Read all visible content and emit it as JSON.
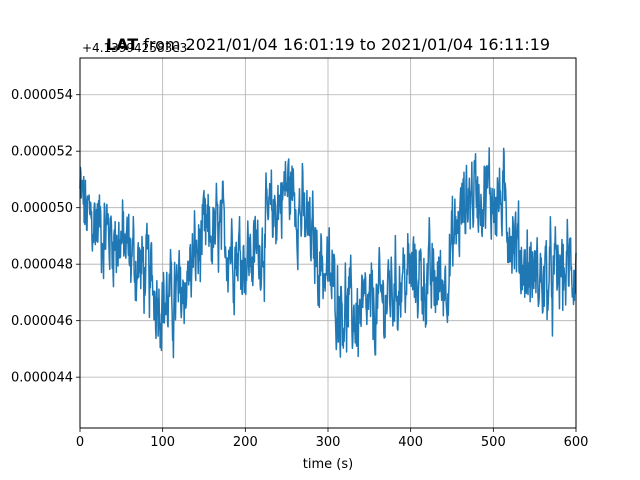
{
  "chart_data": {
    "type": "line",
    "title_variable": "LAT",
    "title_rest": " from 2021/01/04 16:01:19 to 2021/01/04 16:11:19",
    "xlabel": "time (s)",
    "ylabel": "",
    "y_offset_label": "+4.139942583e3",
    "xlim": [
      0,
      600
    ],
    "ylim": [
      4.22e-05,
      5.53e-05
    ],
    "x_ticks": [
      0,
      100,
      200,
      300,
      400,
      500,
      600
    ],
    "x_tick_labels": [
      "0",
      "100",
      "200",
      "300",
      "400",
      "500",
      "600"
    ],
    "y_ticks": [
      4.4e-05,
      4.6e-05,
      4.8e-05,
      5e-05,
      5.2e-05,
      5.4e-05
    ],
    "y_tick_labels": [
      "0.000044",
      "0.000046",
      "0.000048",
      "0.000050",
      "0.000052",
      "0.000054"
    ],
    "grid": true,
    "series": [
      {
        "color": "#1f77b4",
        "x": [
          0,
          10,
          20,
          30,
          40,
          50,
          60,
          70,
          80,
          90,
          100,
          110,
          120,
          130,
          140,
          150,
          160,
          170,
          180,
          190,
          200,
          210,
          220,
          230,
          240,
          250,
          260,
          270,
          280,
          290,
          300,
          310,
          320,
          330,
          340,
          350,
          360,
          370,
          380,
          390,
          400,
          410,
          420,
          430,
          440,
          450,
          460,
          470,
          480,
          490,
          500,
          510,
          520,
          530,
          540,
          550,
          560,
          570,
          580,
          590,
          600
        ],
        "y": [
          5.05e-05,
          4.95e-05,
          4.95e-05,
          4.92e-05,
          4.9e-05,
          4.88e-05,
          4.84e-05,
          4.8e-05,
          4.76e-05,
          4.72e-05,
          4.68e-05,
          4.66e-05,
          4.68e-05,
          4.75e-05,
          4.83e-05,
          4.88e-05,
          4.9e-05,
          4.9e-05,
          4.88e-05,
          4.85e-05,
          4.83e-05,
          4.83e-05,
          4.88e-05,
          4.95e-05,
          5.02e-05,
          5.08e-05,
          5.05e-05,
          4.96e-05,
          4.88e-05,
          4.82e-05,
          4.76e-05,
          4.7e-05,
          4.65e-05,
          4.62e-05,
          4.61e-05,
          4.62e-05,
          4.65e-05,
          4.68e-05,
          4.72e-05,
          4.75e-05,
          4.76e-05,
          4.76e-05,
          4.74e-05,
          4.72e-05,
          4.74e-05,
          4.85e-05,
          4.97e-05,
          5.05e-05,
          5.07e-05,
          5.05e-05,
          5.04e-05,
          5.02e-05,
          4.95e-05,
          4.85e-05,
          4.78e-05,
          4.76e-05,
          4.74e-05,
          4.74e-05,
          4.76e-05,
          4.78e-05,
          4.8e-05
        ],
        "noise_amplitude": 1.6e-06
      }
    ]
  }
}
